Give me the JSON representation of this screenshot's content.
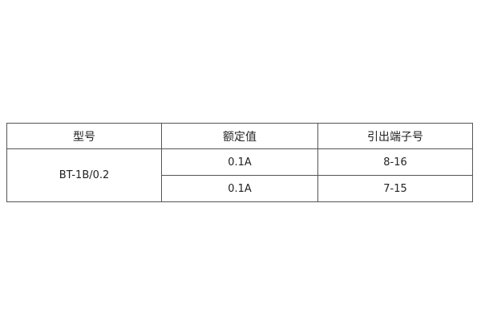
{
  "table": {
    "headers": [
      "型号",
      "额定值",
      "引出端子号"
    ],
    "model": "BT-1B/0.2",
    "rows": [
      {
        "rating": "0.1A",
        "terminals": "8-16"
      },
      {
        "rating": "0.1A",
        "terminals": "7-15"
      }
    ]
  }
}
